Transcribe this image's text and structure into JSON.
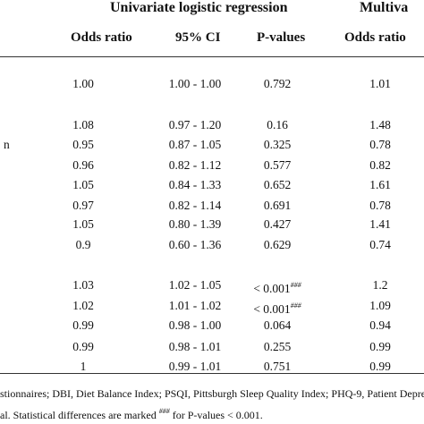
{
  "header": {
    "group_univariate": "Univariate logistic regression",
    "group_multivariate": "Multiva",
    "columns": {
      "odds_ratio": "Odds ratio",
      "ci": "95% CI",
      "pvalues": "P-values",
      "odds_ratio_multi": "Odds ratio"
    }
  },
  "rows": [
    {
      "label": "",
      "or": "1.00",
      "ci": "1.00 - 1.00",
      "p": "0.792",
      "sig": "",
      "or_multi": "1.01"
    },
    {
      "label": "",
      "or": "1.08",
      "ci": "0.97 - 1.20",
      "p": "0.16",
      "sig": "",
      "or_multi": "1.48"
    },
    {
      "label": "n",
      "or": "0.95",
      "ci": "0.87 - 1.05",
      "p": "0.325",
      "sig": "",
      "or_multi": "0.78"
    },
    {
      "label": "",
      "or": "0.96",
      "ci": "0.82 - 1.12",
      "p": "0.577",
      "sig": "",
      "or_multi": "0.82"
    },
    {
      "label": "",
      "or": "1.05",
      "ci": "0.84 - 1.33",
      "p": "0.652",
      "sig": "",
      "or_multi": "1.61"
    },
    {
      "label": "",
      "or": "0.97",
      "ci": "0.82 - 1.14",
      "p": "0.691",
      "sig": "",
      "or_multi": "0.78"
    },
    {
      "label": "",
      "or": "1.05",
      "ci": "0.80 - 1.39",
      "p": "0.427",
      "sig": "",
      "or_multi": "1.41"
    },
    {
      "label": "",
      "or": "0.9",
      "ci": "0.60 - 1.36",
      "p": "0.629",
      "sig": "",
      "or_multi": "0.74"
    },
    {
      "label": "",
      "or": "1.03",
      "ci": "1.02 - 1.05",
      "p": "< 0.001",
      "sig": "###",
      "or_multi": "1.2"
    },
    {
      "label": "",
      "or": "1.02",
      "ci": "1.01 - 1.02",
      "p": "< 0.001",
      "sig": "###",
      "or_multi": "1.09"
    },
    {
      "label": "",
      "or": "0.99",
      "ci": "0.98 - 1.00",
      "p": "0.064",
      "sig": "",
      "or_multi": "0.94"
    },
    {
      "label": "",
      "or": "0.99",
      "ci": "0.98 - 1.01",
      "p": "0.255",
      "sig": "",
      "or_multi": "0.99"
    },
    {
      "label": "",
      "or": "1",
      "ci": "0.99 - 1.01",
      "p": "0.751",
      "sig": "",
      "or_multi": "0.99"
    }
  ],
  "footnote": {
    "line1": "stionnaires; DBI, Diet Balance Index; PSQI, Pittsburgh Sleep Quality Index; PHQ-9, Patient Depres",
    "line2_pre": "al. Statistical differences are marked ",
    "line2_sig": "###",
    "line2_post": " for P-values < 0.001."
  }
}
